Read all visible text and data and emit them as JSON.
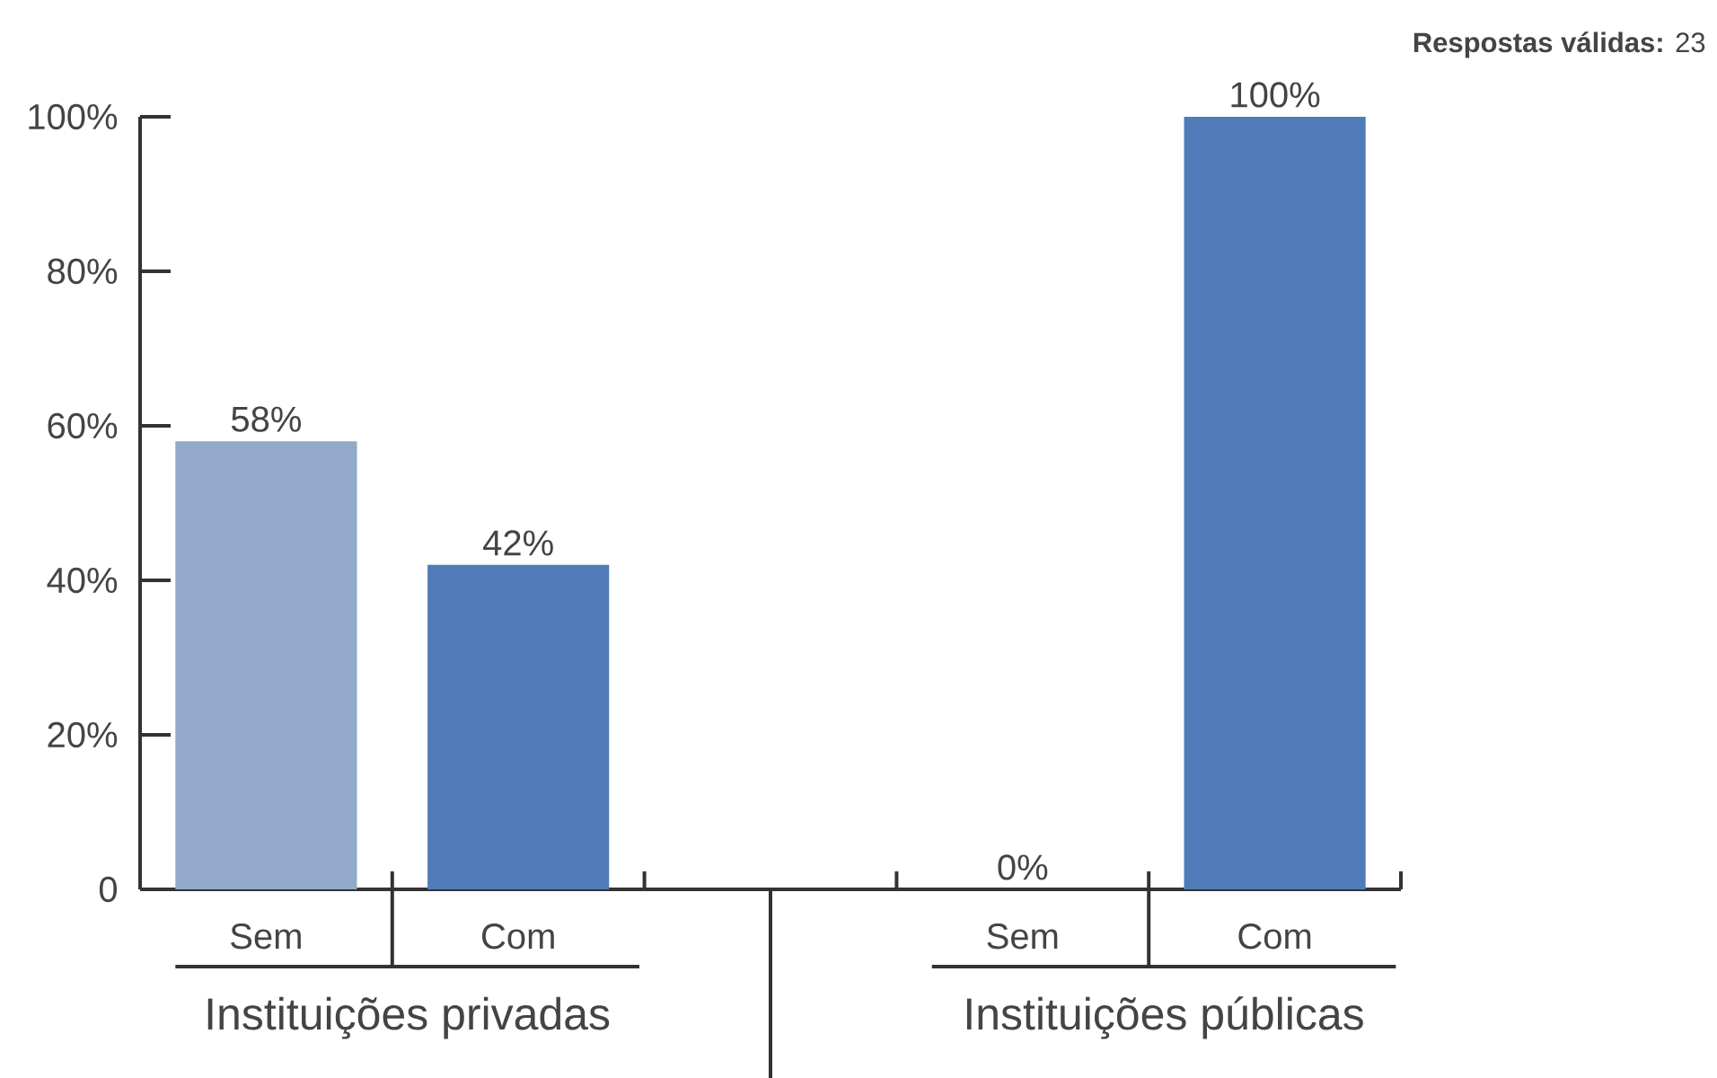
{
  "chart_data": {
    "type": "bar",
    "categories": [
      "Sem",
      "Com",
      null,
      "Sem",
      "Com"
    ],
    "values": [
      58,
      42,
      null,
      0,
      100
    ],
    "colors": [
      "#92a9c9",
      "#4f7cb9",
      null,
      "#92a9c9",
      "#4f7cb9"
    ],
    "value_labels": [
      "58%",
      "42%",
      null,
      "0%",
      "100%"
    ],
    "ylim": [
      0,
      100
    ],
    "yticks": [
      {
        "value": 0,
        "label": "0"
      },
      {
        "value": 20,
        "label": "20%"
      },
      {
        "value": 40,
        "label": "40%"
      },
      {
        "value": 60,
        "label": "60%"
      },
      {
        "value": 80,
        "label": "80%"
      },
      {
        "value": 100,
        "label": "100%"
      }
    ],
    "annotations": [
      "**Respostas válidas:** 23",
      "Instituições privadas",
      "Instituições públicas"
    ]
  }
}
